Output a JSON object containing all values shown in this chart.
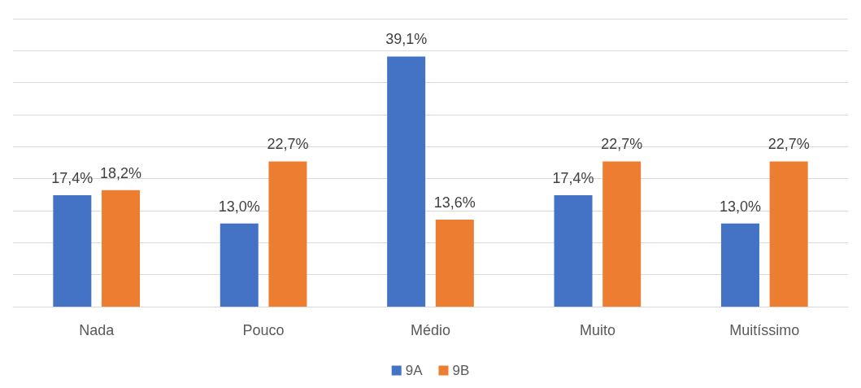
{
  "chart_data": {
    "type": "bar",
    "categories": [
      "Nada",
      "Pouco",
      "Médio",
      "Muito",
      "Muitíssimo"
    ],
    "series": [
      {
        "name": "9A",
        "color": "#4472c4",
        "values": [
          17.4,
          13.0,
          39.1,
          17.4,
          13.0
        ],
        "value_labels": [
          "17,4%",
          "13,0%",
          "39,1%",
          "17,4%",
          "13,0%"
        ]
      },
      {
        "name": "9B",
        "color": "#ed7d31",
        "values": [
          18.2,
          22.7,
          13.6,
          22.7,
          22.7
        ],
        "value_labels": [
          "18,2%",
          "22,7%",
          "13,6%",
          "22,7%",
          "22,7%"
        ]
      }
    ],
    "ylim": [
      0,
      45
    ],
    "yticks": [
      {
        "value": 0,
        "label": null
      },
      {
        "value": 5,
        "label": null
      },
      {
        "value": 10,
        "label": null
      },
      {
        "value": 15,
        "label": null
      },
      {
        "value": 20,
        "label": null
      },
      {
        "value": 25,
        "label": null
      },
      {
        "value": 30,
        "label": null
      },
      {
        "value": 35,
        "label": null
      },
      {
        "value": 40,
        "label": null
      },
      {
        "value": 45,
        "label": null
      }
    ],
    "grid": "y",
    "legend": "bottom",
    "tick_labels": "x"
  }
}
